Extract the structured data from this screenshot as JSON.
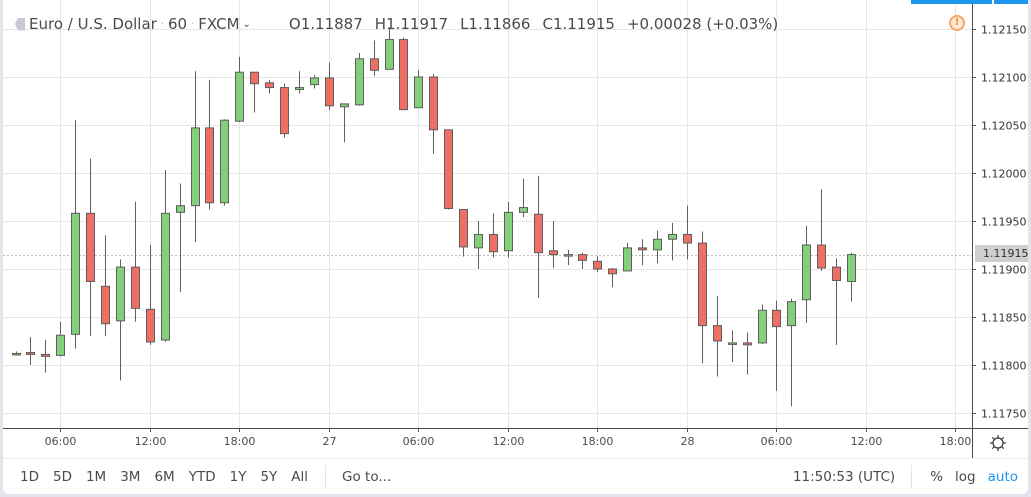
{
  "header": {
    "symbol_name": "Euro / U.S. Dollar",
    "interval": "60",
    "exchange": "FXCM",
    "open": "O1.11887",
    "high": "H1.11917",
    "low": "L1.11866",
    "close": "C1.11915",
    "change": "+0.00028 (+0.03%)"
  },
  "price_axis": {
    "current_price_label": "1.11915",
    "current_price_color": "#cfcfcf"
  },
  "bottom_bar": {
    "ranges": [
      "1D",
      "5D",
      "1M",
      "3M",
      "6M",
      "YTD",
      "1Y",
      "5Y",
      "All"
    ],
    "goto_label": "Go to...",
    "clock": "11:50:53 (UTC)",
    "percent_label": "%",
    "log_label": "log",
    "auto_label": "auto"
  },
  "colors": {
    "up": "#84cf7c",
    "down": "#ee6f63",
    "wick": "#5e5e5e",
    "grid": "#e6e6e6",
    "accent": "#1e96f0",
    "warning": "#f7a467"
  },
  "chart_data": {
    "type": "candlestick",
    "title": "Euro / U.S. Dollar · 60 · FXCM",
    "xlabel": "",
    "ylabel": "",
    "ylim": [
      1.11735,
      1.12165
    ],
    "y_ticks": [
      "1.12150",
      "1.12100",
      "1.12050",
      "1.12000",
      "1.11950",
      "1.11900",
      "1.11850",
      "1.11800",
      "1.11750"
    ],
    "x_ticks": [
      {
        "label": "06:00",
        "index": 3
      },
      {
        "label": "12:00",
        "index": 9
      },
      {
        "label": "18:00",
        "index": 15
      },
      {
        "label": "27",
        "index": 21
      },
      {
        "label": "06:00",
        "index": 27
      },
      {
        "label": "12:00",
        "index": 33
      },
      {
        "label": "18:00",
        "index": 39
      },
      {
        "label": "28",
        "index": 45
      },
      {
        "label": "06:00",
        "index": 51
      },
      {
        "label": "12:00",
        "index": 57
      },
      {
        "label": "18:00",
        "index": 63
      }
    ],
    "grid": true,
    "last_price": 1.11915,
    "candles": [
      {
        "o": 1.11812,
        "h": 1.11814,
        "l": 1.1181,
        "c": 1.11812
      },
      {
        "o": 1.11813,
        "h": 1.11829,
        "l": 1.118,
        "c": 1.11811
      },
      {
        "o": 1.11811,
        "h": 1.11826,
        "l": 1.11792,
        "c": 1.11809
      },
      {
        "o": 1.1181,
        "h": 1.11845,
        "l": 1.11809,
        "c": 1.11831
      },
      {
        "o": 1.11832,
        "h": 1.12055,
        "l": 1.11817,
        "c": 1.11958
      },
      {
        "o": 1.11958,
        "h": 1.12015,
        "l": 1.1183,
        "c": 1.11887
      },
      {
        "o": 1.11882,
        "h": 1.11935,
        "l": 1.1183,
        "c": 1.11843
      },
      {
        "o": 1.11846,
        "h": 1.1191,
        "l": 1.11784,
        "c": 1.11902
      },
      {
        "o": 1.11902,
        "h": 1.1197,
        "l": 1.11845,
        "c": 1.11859
      },
      {
        "o": 1.11858,
        "h": 1.11925,
        "l": 1.11821,
        "c": 1.11824
      },
      {
        "o": 1.11826,
        "h": 1.12003,
        "l": 1.11824,
        "c": 1.11958
      },
      {
        "o": 1.11959,
        "h": 1.11989,
        "l": 1.11876,
        "c": 1.11966
      },
      {
        "o": 1.11966,
        "h": 1.12106,
        "l": 1.11928,
        "c": 1.12047
      },
      {
        "o": 1.12047,
        "h": 1.12097,
        "l": 1.11962,
        "c": 1.11969
      },
      {
        "o": 1.11969,
        "h": 1.12056,
        "l": 1.11966,
        "c": 1.12055
      },
      {
        "o": 1.12054,
        "h": 1.12121,
        "l": 1.12053,
        "c": 1.12105
      },
      {
        "o": 1.12105,
        "h": 1.12105,
        "l": 1.12063,
        "c": 1.12093
      },
      {
        "o": 1.12094,
        "h": 1.12097,
        "l": 1.12083,
        "c": 1.12089
      },
      {
        "o": 1.12089,
        "h": 1.12093,
        "l": 1.12037,
        "c": 1.12041
      },
      {
        "o": 1.12087,
        "h": 1.12106,
        "l": 1.12083,
        "c": 1.12089
      },
      {
        "o": 1.12092,
        "h": 1.12102,
        "l": 1.12088,
        "c": 1.12099
      },
      {
        "o": 1.12099,
        "h": 1.12115,
        "l": 1.12066,
        "c": 1.1207
      },
      {
        "o": 1.12069,
        "h": 1.12072,
        "l": 1.12032,
        "c": 1.12072
      },
      {
        "o": 1.12071,
        "h": 1.12125,
        "l": 1.1207,
        "c": 1.12119
      },
      {
        "o": 1.12119,
        "h": 1.12138,
        "l": 1.12101,
        "c": 1.12107
      },
      {
        "o": 1.12108,
        "h": 1.12152,
        "l": 1.12108,
        "c": 1.12139
      },
      {
        "o": 1.12139,
        "h": 1.12141,
        "l": 1.12066,
        "c": 1.12066
      },
      {
        "o": 1.12068,
        "h": 1.12107,
        "l": 1.12068,
        "c": 1.121
      },
      {
        "o": 1.121,
        "h": 1.12103,
        "l": 1.1202,
        "c": 1.12045
      },
      {
        "o": 1.12045,
        "h": 1.12045,
        "l": 1.11962,
        "c": 1.11963
      },
      {
        "o": 1.11962,
        "h": 1.11949,
        "l": 1.11913,
        "c": 1.11923
      },
      {
        "o": 1.11922,
        "h": 1.1195,
        "l": 1.119,
        "c": 1.11936
      },
      {
        "o": 1.11936,
        "h": 1.11958,
        "l": 1.11912,
        "c": 1.11918
      },
      {
        "o": 1.11919,
        "h": 1.1197,
        "l": 1.11912,
        "c": 1.11959
      },
      {
        "o": 1.11959,
        "h": 1.11994,
        "l": 1.11954,
        "c": 1.11964
      },
      {
        "o": 1.11957,
        "h": 1.11997,
        "l": 1.1187,
        "c": 1.11917
      },
      {
        "o": 1.11919,
        "h": 1.1195,
        "l": 1.11901,
        "c": 1.11915
      },
      {
        "o": 1.11915,
        "h": 1.1192,
        "l": 1.11904,
        "c": 1.11915
      },
      {
        "o": 1.11915,
        "h": 1.11917,
        "l": 1.119,
        "c": 1.11909
      },
      {
        "o": 1.11908,
        "h": 1.11913,
        "l": 1.11897,
        "c": 1.119
      },
      {
        "o": 1.119,
        "h": 1.11901,
        "l": 1.11881,
        "c": 1.11895
      },
      {
        "o": 1.11898,
        "h": 1.11927,
        "l": 1.11898,
        "c": 1.11922
      },
      {
        "o": 1.11922,
        "h": 1.11931,
        "l": 1.11904,
        "c": 1.1192
      },
      {
        "o": 1.1192,
        "h": 1.1194,
        "l": 1.11906,
        "c": 1.11931
      },
      {
        "o": 1.11931,
        "h": 1.11948,
        "l": 1.11909,
        "c": 1.11936
      },
      {
        "o": 1.11936,
        "h": 1.11966,
        "l": 1.1191,
        "c": 1.11927
      },
      {
        "o": 1.11927,
        "h": 1.11939,
        "l": 1.11802,
        "c": 1.11841
      },
      {
        "o": 1.11841,
        "h": 1.11872,
        "l": 1.11788,
        "c": 1.11825
      },
      {
        "o": 1.11823,
        "h": 1.11836,
        "l": 1.11803,
        "c": 1.11823
      },
      {
        "o": 1.11823,
        "h": 1.11834,
        "l": 1.1179,
        "c": 1.11821
      },
      {
        "o": 1.11823,
        "h": 1.11863,
        "l": 1.11822,
        "c": 1.11857
      },
      {
        "o": 1.11857,
        "h": 1.11867,
        "l": 1.11773,
        "c": 1.1184
      },
      {
        "o": 1.11841,
        "h": 1.11869,
        "l": 1.11757,
        "c": 1.11866
      },
      {
        "o": 1.11868,
        "h": 1.11945,
        "l": 1.11844,
        "c": 1.11925
      },
      {
        "o": 1.11925,
        "h": 1.11983,
        "l": 1.11898,
        "c": 1.11901
      },
      {
        "o": 1.11902,
        "h": 1.11911,
        "l": 1.11821,
        "c": 1.11888
      },
      {
        "o": 1.11887,
        "h": 1.11917,
        "l": 1.11866,
        "c": 1.11915
      }
    ]
  }
}
